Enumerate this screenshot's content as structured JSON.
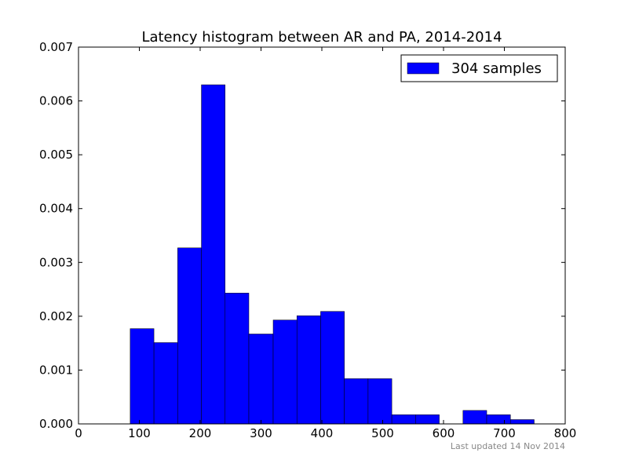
{
  "chart_data": {
    "type": "bar",
    "title": "Latency histogram between AR and PA, 2014-2014",
    "xlabel": "",
    "ylabel": "",
    "xlim": [
      0,
      800
    ],
    "ylim": [
      0,
      0.007
    ],
    "grid": false,
    "legend_position": "top-right",
    "x_ticks": [
      "0",
      "100",
      "200",
      "300",
      "400",
      "500",
      "600",
      "700",
      "800"
    ],
    "y_ticks": [
      "0.000",
      "0.001",
      "0.002",
      "0.003",
      "0.004",
      "0.005",
      "0.006",
      "0.007"
    ],
    "bar_color": "#0000ff",
    "series": [
      {
        "name": "304 samples",
        "bins": [
          {
            "x0": 85,
            "x1": 124,
            "value": 0.00177
          },
          {
            "x0": 124,
            "x1": 163,
            "value": 0.00151
          },
          {
            "x0": 163,
            "x1": 202,
            "value": 0.00327
          },
          {
            "x0": 202,
            "x1": 241,
            "value": 0.0063
          },
          {
            "x0": 241,
            "x1": 280,
            "value": 0.00243
          },
          {
            "x0": 280,
            "x1": 320,
            "value": 0.00167
          },
          {
            "x0": 320,
            "x1": 359,
            "value": 0.00193
          },
          {
            "x0": 359,
            "x1": 398,
            "value": 0.00201
          },
          {
            "x0": 398,
            "x1": 437,
            "value": 0.00209
          },
          {
            "x0": 437,
            "x1": 476,
            "value": 0.00084
          },
          {
            "x0": 476,
            "x1": 515,
            "value": 0.00084
          },
          {
            "x0": 515,
            "x1": 554,
            "value": 0.00017
          },
          {
            "x0": 554,
            "x1": 593,
            "value": 0.00017
          },
          {
            "x0": 593,
            "x1": 632,
            "value": 0
          },
          {
            "x0": 632,
            "x1": 671,
            "value": 0.00025
          },
          {
            "x0": 671,
            "x1": 710,
            "value": 0.00017
          },
          {
            "x0": 710,
            "x1": 749,
            "value": 8e-05
          }
        ]
      }
    ]
  },
  "footer": {
    "note": "Last updated 14 Nov 2014"
  }
}
